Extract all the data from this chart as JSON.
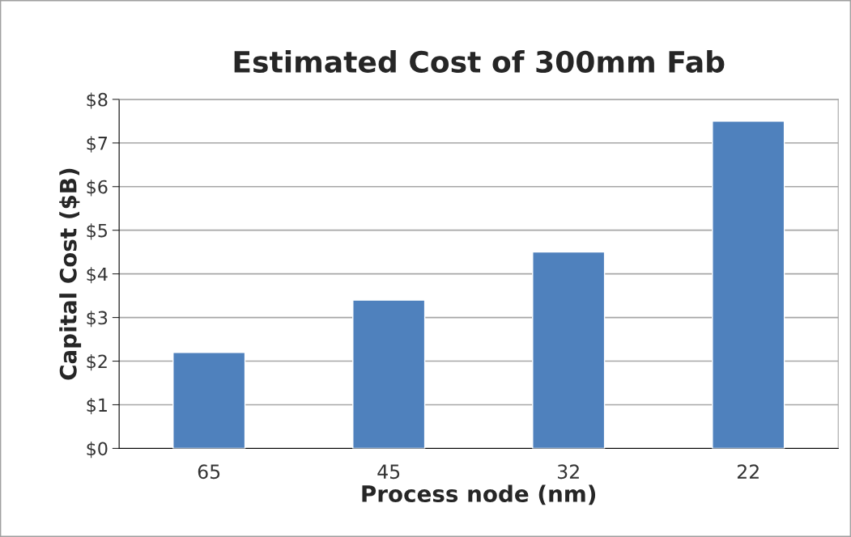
{
  "chart_data": {
    "type": "bar",
    "title": "Estimated Cost of 300mm Fab",
    "xlabel": "Process node (nm)",
    "ylabel": "Capital Cost ($B)",
    "categories": [
      "65",
      "45",
      "32",
      "22"
    ],
    "series": [
      {
        "color": "#4f81bd",
        "values": [
          2.2,
          3.4,
          4.5,
          7.5
        ]
      }
    ],
    "ylim": [
      0,
      8
    ],
    "yticks": [
      {
        "value": 0,
        "label": "$0"
      },
      {
        "value": 1,
        "label": "$1"
      },
      {
        "value": 2,
        "label": "$2"
      },
      {
        "value": 3,
        "label": "$3"
      },
      {
        "value": 4,
        "label": "$4"
      },
      {
        "value": 5,
        "label": "$5"
      },
      {
        "value": 6,
        "label": "$6"
      },
      {
        "value": 7,
        "label": "$7"
      },
      {
        "value": 8,
        "label": "$8"
      }
    ],
    "grid": "y"
  }
}
